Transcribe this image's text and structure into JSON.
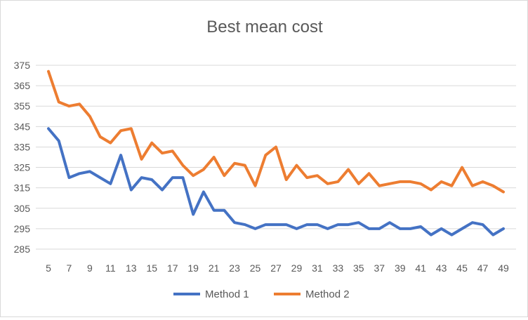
{
  "chart_data": {
    "type": "line",
    "title": "Best mean cost",
    "xlabel": "",
    "ylabel": "",
    "x": [
      5,
      6,
      7,
      8,
      9,
      10,
      11,
      12,
      13,
      14,
      15,
      16,
      17,
      18,
      19,
      20,
      21,
      22,
      23,
      24,
      25,
      26,
      27,
      28,
      29,
      30,
      31,
      32,
      33,
      34,
      35,
      36,
      37,
      38,
      39,
      40,
      41,
      42,
      43,
      44,
      45,
      46,
      47,
      48,
      49
    ],
    "x_tick_labels": [
      "5",
      "7",
      "9",
      "11",
      "13",
      "15",
      "17",
      "19",
      "21",
      "23",
      "25",
      "27",
      "29",
      "31",
      "33",
      "35",
      "37",
      "39",
      "41",
      "43",
      "45",
      "47",
      "49"
    ],
    "ylim": [
      285,
      375
    ],
    "y_tick_labels": [
      "285",
      "295",
      "305",
      "315",
      "325",
      "335",
      "345",
      "355",
      "365",
      "375"
    ],
    "grid": true,
    "legend_position": "bottom",
    "series": [
      {
        "name": "Method 1",
        "color": "#4472c4",
        "values": [
          344,
          338,
          320,
          322,
          323,
          320,
          317,
          331,
          314,
          320,
          319,
          314,
          320,
          320,
          302,
          313,
          304,
          304,
          298,
          297,
          295,
          297,
          297,
          297,
          295,
          297,
          297,
          295,
          297,
          297,
          298,
          295,
          295,
          298,
          295,
          295,
          296,
          292,
          295,
          292,
          295,
          298,
          297,
          292,
          295
        ]
      },
      {
        "name": "Method 2",
        "color": "#ed7d31",
        "values": [
          372,
          357,
          355,
          356,
          350,
          340,
          337,
          343,
          344,
          329,
          337,
          332,
          333,
          326,
          321,
          324,
          330,
          321,
          327,
          326,
          316,
          331,
          335,
          319,
          326,
          320,
          321,
          317,
          318,
          324,
          317,
          322,
          316,
          317,
          318,
          318,
          317,
          314,
          318,
          316,
          325,
          316,
          318,
          316,
          313
        ]
      }
    ]
  }
}
